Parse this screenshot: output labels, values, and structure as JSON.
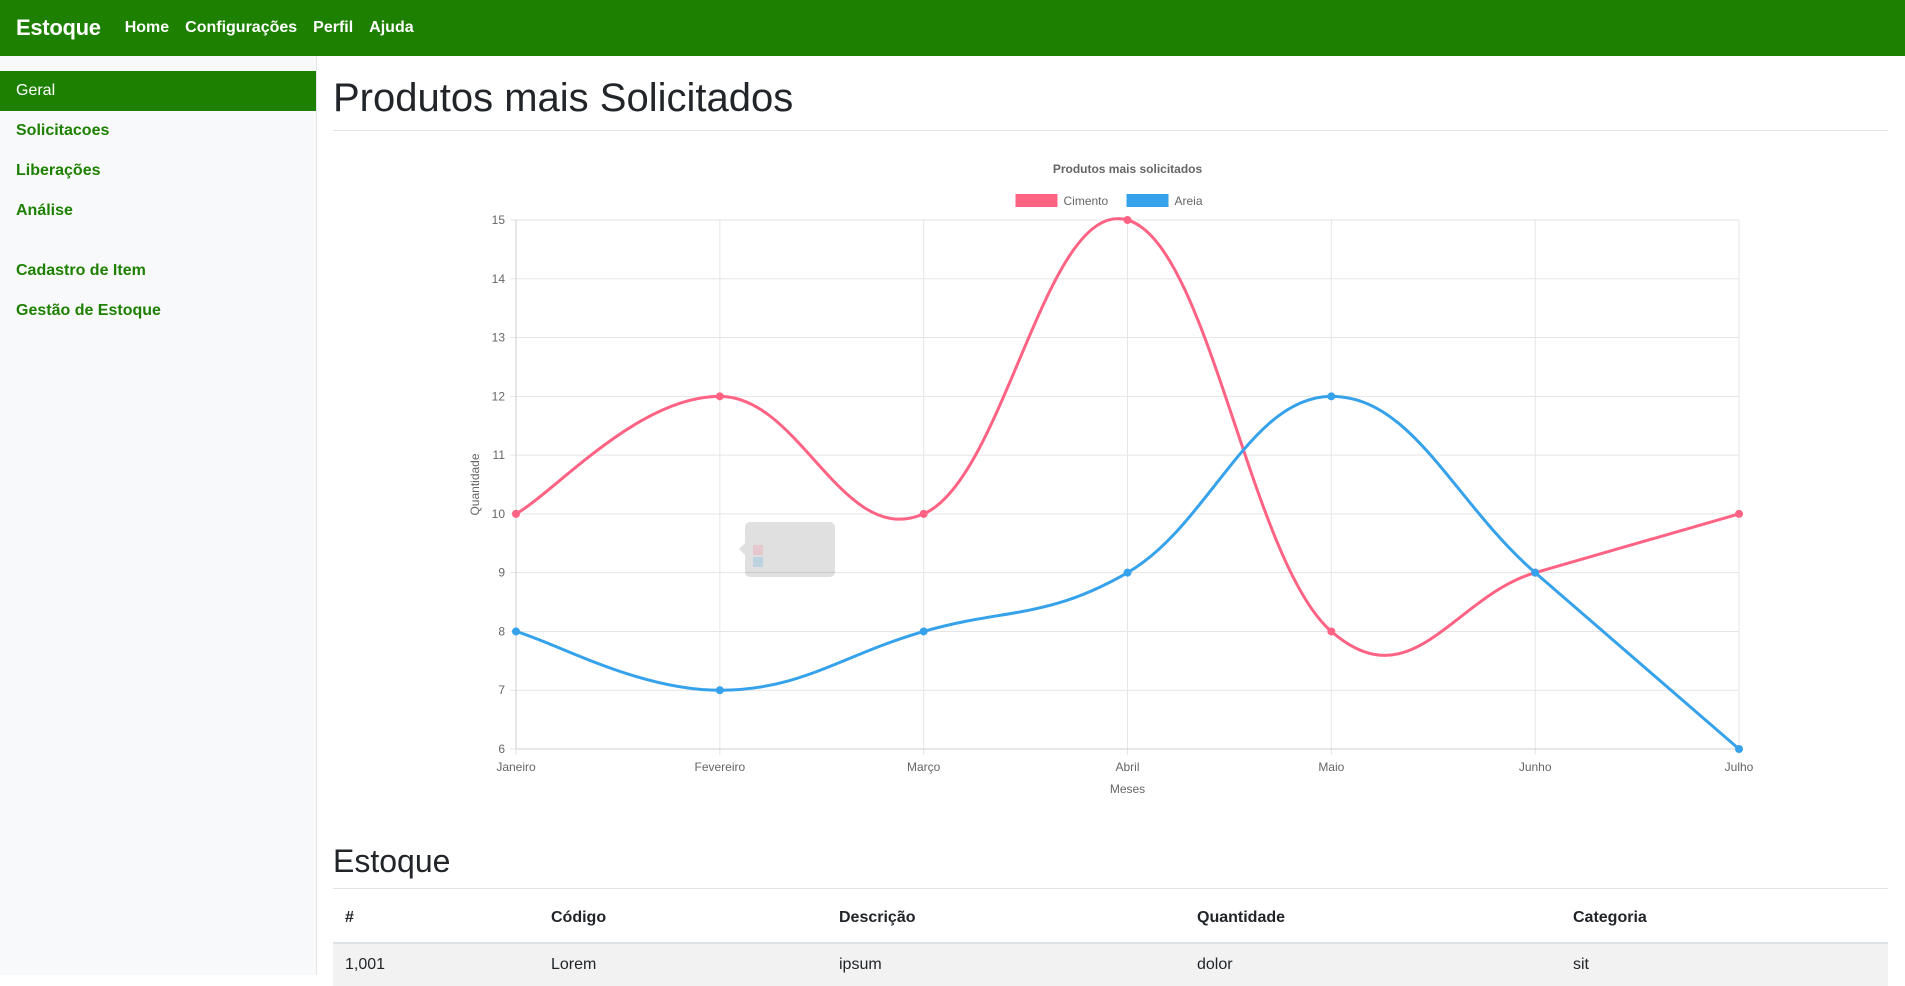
{
  "navbar": {
    "brand": "Estoque",
    "links": [
      "Home",
      "Configurações",
      "Perfil",
      "Ajuda"
    ]
  },
  "sidebar": {
    "items": [
      {
        "label": "Geral",
        "active": true
      },
      {
        "label": "Solicitacoes"
      },
      {
        "label": "Liberações"
      },
      {
        "label": "Análise"
      },
      {
        "label": "Cadastro de Item"
      },
      {
        "label": "Gestão de Estoque"
      }
    ]
  },
  "main": {
    "title": "Produtos mais Solicitados",
    "stock_title": "Estoque"
  },
  "table": {
    "headers": [
      "#",
      "Código",
      "Descrição",
      "Quantidade",
      "Categoria"
    ],
    "rows": [
      [
        "1,001",
        "Lorem",
        "ipsum",
        "dolor",
        "sit"
      ]
    ]
  },
  "colors": {
    "accent": "#1d8000",
    "cimento": "#ff6384",
    "areia": "#36a2eb"
  },
  "chart_data": {
    "type": "line",
    "title": "Produtos mais solicitados",
    "xlabel": "Meses",
    "ylabel": "Quantidade",
    "categories": [
      "Janeiro",
      "Fevereiro",
      "Março",
      "Abril",
      "Maio",
      "Junho",
      "Julho"
    ],
    "ylim": [
      6,
      15
    ],
    "yticks": [
      6,
      7,
      8,
      9,
      10,
      11,
      12,
      13,
      14,
      15
    ],
    "series": [
      {
        "name": "Cimento",
        "values": [
          10,
          12,
          10,
          15,
          8,
          9,
          10
        ],
        "color": "#ff6384"
      },
      {
        "name": "Areia",
        "values": [
          8,
          7,
          8,
          9,
          12,
          9,
          6
        ],
        "color": "#36a2eb"
      }
    ],
    "legend": "top",
    "grid": true
  }
}
